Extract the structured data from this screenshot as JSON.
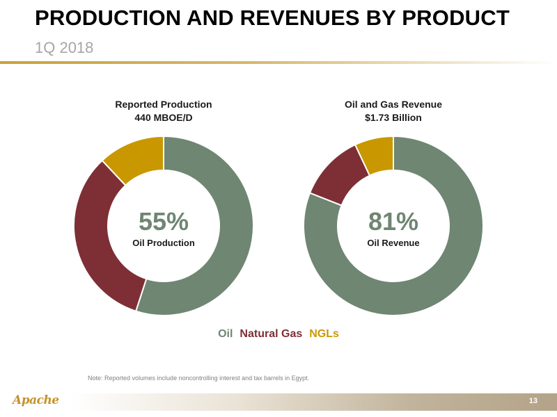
{
  "header": {
    "title": "PRODUCTION AND REVENUES BY PRODUCT",
    "subtitle": "1Q 2018"
  },
  "colors": {
    "oil": "#6f8672",
    "natural_gas": "#7d2f35",
    "ngls": "#c99800"
  },
  "chart_data": [
    {
      "type": "pie",
      "title": "Reported Production",
      "subtitle": "440 MBOE/D",
      "center_value": "55%",
      "center_label": "Oil Production",
      "categories": [
        "Oil",
        "Natural Gas",
        "NGLs"
      ],
      "values": [
        55,
        33,
        12
      ]
    },
    {
      "type": "pie",
      "title": "Oil and Gas Revenue",
      "subtitle": "$1.73 Billion",
      "center_value": "81%",
      "center_label": "Oil Revenue",
      "categories": [
        "Oil",
        "Natural Gas",
        "NGLs"
      ],
      "values": [
        81,
        12,
        7
      ]
    }
  ],
  "legend": {
    "oil": "Oil",
    "natural_gas": "Natural Gas",
    "ngls": "NGLs"
  },
  "note": "Note: Reported volumes include noncontrolling interest and tax barrels in Egypt.",
  "footer": {
    "logo_text": "Apache",
    "page_number": "13"
  }
}
